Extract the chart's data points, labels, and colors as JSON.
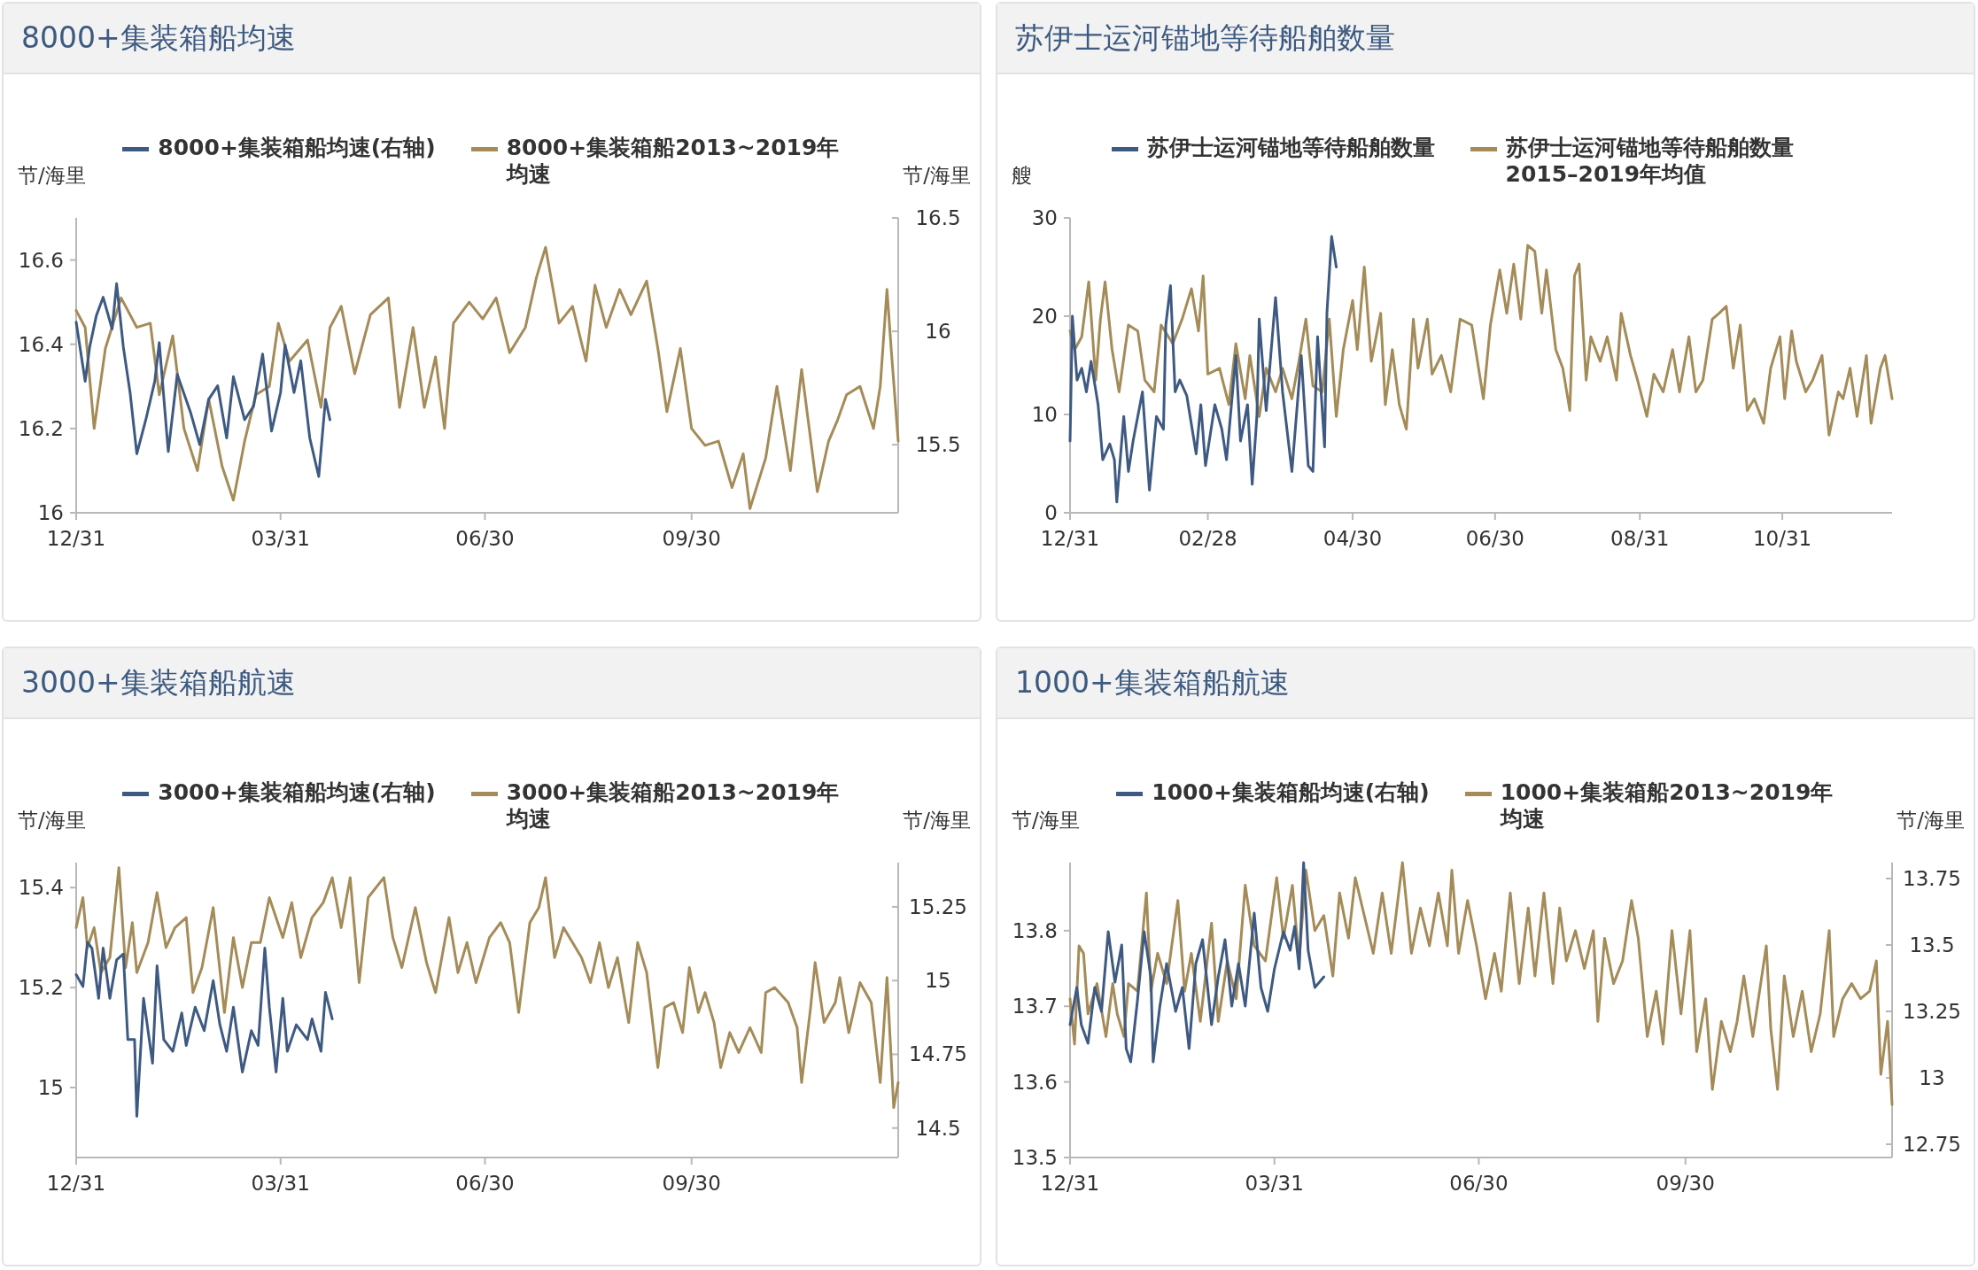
{
  "chart_data": [
    {
      "type": "line",
      "title": "8000+集装箱船均速",
      "ylabel": "节/海里",
      "y2label": "节/海里",
      "legend": "top",
      "xlim": [
        "2019-12-31",
        "2020-12-31"
      ],
      "xticks": [
        {
          "value": "2019-12-31",
          "label": "12/31"
        },
        {
          "value": "2020-03-31",
          "label": "03/31"
        },
        {
          "value": "2020-06-30",
          "label": "06/30"
        },
        {
          "value": "2020-09-30",
          "label": "09/30"
        }
      ],
      "ylim": [
        16,
        16.7
      ],
      "yticks": [
        16,
        16.2,
        16.4,
        16.6
      ],
      "y2lim": [
        15.2,
        16.5
      ],
      "y2ticks": [
        15.5,
        16,
        16.5
      ],
      "series": [
        {
          "name": "8000+集装箱船均速(右轴)",
          "color": "#3e5a82",
          "axis": "y2",
          "x": [
            "2019-12-31",
            "2020-01-04",
            "2020-01-06",
            "2020-01-09",
            "2020-01-12",
            "2020-01-16",
            "2020-01-18",
            "2020-01-21",
            "2020-01-24",
            "2020-01-27",
            "2020-01-31",
            "2020-02-04",
            "2020-02-06",
            "2020-02-10",
            "2020-02-14",
            "2020-02-20",
            "2020-02-24",
            "2020-02-28",
            "2020-03-03",
            "2020-03-07",
            "2020-03-10",
            "2020-03-15",
            "2020-03-19",
            "2020-03-23",
            "2020-03-27",
            "2020-03-31",
            "2020-04-02",
            "2020-04-06",
            "2020-04-09",
            "2020-04-13",
            "2020-04-17",
            "2020-04-20",
            "2020-04-22"
          ],
          "values": [
            16.04,
            15.78,
            15.93,
            16.07,
            16.15,
            16.01,
            16.21,
            15.93,
            15.73,
            15.46,
            15.61,
            15.78,
            15.95,
            15.47,
            15.81,
            15.64,
            15.5,
            15.7,
            15.76,
            15.53,
            15.8,
            15.61,
            15.67,
            15.9,
            15.56,
            15.73,
            15.94,
            15.73,
            15.87,
            15.53,
            15.36,
            15.7,
            15.61
          ]
        },
        {
          "name": "8000+集装箱船2013~2019年均速",
          "color": "#a48b58",
          "x": [
            "2019-12-31",
            "2020-01-04",
            "2020-01-08",
            "2020-01-13",
            "2020-01-20",
            "2020-01-27",
            "2020-02-02",
            "2020-02-06",
            "2020-02-12",
            "2020-02-17",
            "2020-02-23",
            "2020-02-28",
            "2020-03-05",
            "2020-03-10",
            "2020-03-15",
            "2020-03-20",
            "2020-03-26",
            "2020-03-30",
            "2020-04-04",
            "2020-04-12",
            "2020-04-18",
            "2020-04-22",
            "2020-04-27",
            "2020-05-03",
            "2020-05-10",
            "2020-05-18",
            "2020-05-23",
            "2020-05-29",
            "2020-06-03",
            "2020-06-08",
            "2020-06-12",
            "2020-06-16",
            "2020-06-23",
            "2020-06-29",
            "2020-07-05",
            "2020-07-11",
            "2020-07-18",
            "2020-07-23",
            "2020-07-27",
            "2020-08-02",
            "2020-08-08",
            "2020-08-14",
            "2020-08-18",
            "2020-08-23",
            "2020-08-29",
            "2020-09-03",
            "2020-09-10",
            "2020-09-15",
            "2020-09-19",
            "2020-09-25",
            "2020-09-30",
            "2020-10-06",
            "2020-10-12",
            "2020-10-18",
            "2020-10-23",
            "2020-10-26",
            "2020-11-02",
            "2020-11-07",
            "2020-11-13",
            "2020-11-18",
            "2020-11-25",
            "2020-11-30",
            "2020-12-04",
            "2020-12-08",
            "2020-12-14",
            "2020-12-20",
            "2020-12-23",
            "2020-12-26",
            "2020-12-28",
            "2020-12-31"
          ],
          "values": [
            16.48,
            16.44,
            16.2,
            16.39,
            16.51,
            16.44,
            16.45,
            16.28,
            16.42,
            16.2,
            16.1,
            16.27,
            16.11,
            16.03,
            16.17,
            16.28,
            16.3,
            16.45,
            16.36,
            16.41,
            16.25,
            16.44,
            16.49,
            16.33,
            16.47,
            16.51,
            16.25,
            16.44,
            16.25,
            16.37,
            16.2,
            16.45,
            16.5,
            16.46,
            16.51,
            16.38,
            16.44,
            16.56,
            16.63,
            16.45,
            16.49,
            16.36,
            16.54,
            16.44,
            16.53,
            16.47,
            16.55,
            16.39,
            16.24,
            16.39,
            16.2,
            16.16,
            16.17,
            16.06,
            16.14,
            16.01,
            16.13,
            16.3,
            16.1,
            16.34,
            16.05,
            16.17,
            16.22,
            16.28,
            16.3,
            16.2,
            16.3,
            16.53,
            16.38,
            16.17
          ]
        }
      ]
    },
    {
      "type": "line",
      "title": "苏伊士运河锚地等待船舶数量",
      "ylabel": "艘",
      "legend": "top",
      "xlim": [
        "2019-12-31",
        "2020-12-17"
      ],
      "xticks": [
        {
          "value": "2019-12-31",
          "label": "12/31"
        },
        {
          "value": "2020-02-28",
          "label": "02/28"
        },
        {
          "value": "2020-04-30",
          "label": "04/30"
        },
        {
          "value": "2020-06-30",
          "label": "06/30"
        },
        {
          "value": "2020-08-31",
          "label": "08/31"
        },
        {
          "value": "2020-10-31",
          "label": "10/31"
        }
      ],
      "ylim": [
        0,
        30
      ],
      "yticks": [
        0,
        10,
        20,
        30
      ],
      "series": [
        {
          "name": "苏伊士运河锚地等待船舶数量",
          "color": "#3e5a82",
          "x": [
            "2019-12-31",
            "2020-01-01",
            "2020-01-03",
            "2020-01-05",
            "2020-01-07",
            "2020-01-09",
            "2020-01-12",
            "2020-01-14",
            "2020-01-17",
            "2020-01-19",
            "2020-01-20",
            "2020-01-23",
            "2020-01-25",
            "2020-01-27",
            "2020-01-31",
            "2020-02-03",
            "2020-02-06",
            "2020-02-09",
            "2020-02-10",
            "2020-02-12",
            "2020-02-14",
            "2020-02-16",
            "2020-02-19",
            "2020-02-23",
            "2020-02-25",
            "2020-02-27",
            "2020-03-02",
            "2020-03-05",
            "2020-03-07",
            "2020-03-11",
            "2020-03-13",
            "2020-03-16",
            "2020-03-18",
            "2020-03-20",
            "2020-03-21",
            "2020-03-24",
            "2020-03-28",
            "2020-03-31",
            "2020-04-04",
            "2020-04-08",
            "2020-04-11",
            "2020-04-13",
            "2020-04-15",
            "2020-04-18",
            "2020-04-19",
            "2020-04-21",
            "2020-04-23"
          ],
          "values": [
            7.3,
            20,
            13.5,
            14.7,
            12.3,
            15.4,
            11,
            5.4,
            7,
            5.4,
            1.1,
            9.8,
            4.2,
            7.3,
            12.3,
            2.3,
            9.8,
            8.5,
            19.1,
            23.1,
            12.3,
            13.5,
            11.9,
            6,
            11,
            4.8,
            11,
            8.5,
            5.4,
            16,
            7.3,
            11,
            2.9,
            9.8,
            19.7,
            10.4,
            21.9,
            12.3,
            4.2,
            16,
            4.8,
            4.2,
            17.9,
            6.7,
            20.3,
            28.1,
            25
          ]
        },
        {
          "name": "苏伊士运河锚地等待船舶数量2015–2019年均值",
          "color": "#a48b58",
          "x": [
            "2019-12-31",
            "2020-01-02",
            "2020-01-05",
            "2020-01-08",
            "2020-01-11",
            "2020-01-13",
            "2020-01-15",
            "2020-01-18",
            "2020-01-21",
            "2020-01-25",
            "2020-01-29",
            "2020-02-01",
            "2020-02-05",
            "2020-02-08",
            "2020-02-13",
            "2020-02-17",
            "2020-02-21",
            "2020-02-24",
            "2020-02-26",
            "2020-02-28",
            "2020-03-04",
            "2020-03-08",
            "2020-03-11",
            "2020-03-15",
            "2020-03-17",
            "2020-03-21",
            "2020-03-24",
            "2020-03-28",
            "2020-03-31",
            "2020-04-04",
            "2020-04-07",
            "2020-04-10",
            "2020-04-13",
            "2020-04-17",
            "2020-04-20",
            "2020-04-23",
            "2020-04-26",
            "2020-04-30",
            "2020-05-02",
            "2020-05-05",
            "2020-05-08",
            "2020-05-12",
            "2020-05-14",
            "2020-05-17",
            "2020-05-20",
            "2020-05-23",
            "2020-05-26",
            "2020-05-28",
            "2020-06-01",
            "2020-06-03",
            "2020-06-07",
            "2020-06-11",
            "2020-06-15",
            "2020-06-20",
            "2020-06-25",
            "2020-06-28",
            "2020-07-02",
            "2020-07-05",
            "2020-07-08",
            "2020-07-11",
            "2020-07-14",
            "2020-07-17",
            "2020-07-20",
            "2020-07-22",
            "2020-07-26",
            "2020-07-29",
            "2020-08-01",
            "2020-08-03",
            "2020-08-05",
            "2020-08-08",
            "2020-08-10",
            "2020-08-14",
            "2020-08-17",
            "2020-08-21",
            "2020-08-23",
            "2020-08-27",
            "2020-08-30",
            "2020-09-03",
            "2020-09-06",
            "2020-09-10",
            "2020-09-14",
            "2020-09-17",
            "2020-09-21",
            "2020-09-24",
            "2020-09-27",
            "2020-10-01",
            "2020-10-04",
            "2020-10-07",
            "2020-10-10",
            "2020-10-13",
            "2020-10-16",
            "2020-10-19",
            "2020-10-23",
            "2020-10-26",
            "2020-10-30",
            "2020-11-01",
            "2020-11-04",
            "2020-11-06",
            "2020-11-10",
            "2020-11-13",
            "2020-11-17",
            "2020-11-20",
            "2020-11-24",
            "2020-11-26",
            "2020-11-29",
            "2020-12-02",
            "2020-12-06",
            "2020-12-08",
            "2020-12-12",
            "2020-12-14",
            "2020-12-17"
          ],
          "values": [
            18.5,
            16.6,
            17.9,
            23.5,
            13.5,
            19.7,
            23.5,
            16.6,
            12.3,
            19.1,
            18.5,
            13.5,
            12.3,
            19.1,
            17.2,
            19.7,
            22.8,
            18.5,
            24.1,
            14.1,
            14.7,
            11,
            17.2,
            11.6,
            16,
            9.8,
            14.7,
            12.3,
            14.7,
            11.6,
            15.4,
            19.7,
            12.9,
            12.3,
            19.7,
            9.8,
            16.6,
            21.6,
            16.6,
            25,
            15.4,
            20.3,
            11,
            16.6,
            11,
            8.5,
            19.7,
            14.7,
            19.7,
            14.1,
            16,
            12.3,
            19.7,
            19.1,
            11.6,
            19.1,
            24.7,
            20.3,
            25.3,
            19.7,
            27.2,
            26.6,
            20.3,
            24.7,
            16.6,
            14.7,
            10.4,
            24.1,
            25.3,
            13.5,
            17.9,
            15.4,
            17.9,
            13.5,
            20.3,
            16,
            13.5,
            9.8,
            14.1,
            12.3,
            16.6,
            12.3,
            17.9,
            12.3,
            13.5,
            19.7,
            20.3,
            21,
            14.7,
            19.1,
            10.4,
            11.6,
            9.1,
            14.7,
            17.9,
            11.6,
            18.5,
            15.4,
            12.3,
            13.5,
            16,
            7.9,
            12.3,
            11.6,
            14.7,
            9.8,
            16,
            9.1,
            14.7,
            16,
            11.6
          ]
        }
      ]
    },
    {
      "type": "line",
      "title": "3000+集装箱船航速",
      "ylabel": "节/海里",
      "y2label": "节/海里",
      "legend": "top",
      "xlim": [
        "2019-12-31",
        "2020-12-31"
      ],
      "xticks": [
        {
          "value": "2019-12-31",
          "label": "12/31"
        },
        {
          "value": "2020-03-31",
          "label": "03/31"
        },
        {
          "value": "2020-06-30",
          "label": "06/30"
        },
        {
          "value": "2020-09-30",
          "label": "09/30"
        }
      ],
      "ylim": [
        14.86,
        15.45
      ],
      "yticks": [
        15,
        15.2,
        15.4
      ],
      "y2lim": [
        14.4,
        15.4
      ],
      "y2ticks": [
        14.5,
        14.75,
        15,
        15.25
      ],
      "series": [
        {
          "name": "3000+集装箱船均速(右轴)",
          "color": "#3e5a82",
          "axis": "y2",
          "x": [
            "2019-12-31",
            "2020-01-03",
            "2020-01-05",
            "2020-01-07",
            "2020-01-10",
            "2020-01-12",
            "2020-01-15",
            "2020-01-18",
            "2020-01-21",
            "2020-01-23",
            "2020-01-26",
            "2020-01-27",
            "2020-01-30",
            "2020-02-03",
            "2020-02-05",
            "2020-02-08",
            "2020-02-12",
            "2020-02-16",
            "2020-02-18",
            "2020-02-22",
            "2020-02-26",
            "2020-03-01",
            "2020-03-04",
            "2020-03-07",
            "2020-03-10",
            "2020-03-14",
            "2020-03-18",
            "2020-03-21",
            "2020-03-24",
            "2020-03-26",
            "2020-03-29",
            "2020-04-01",
            "2020-04-03",
            "2020-04-07",
            "2020-04-12",
            "2020-04-14",
            "2020-04-18",
            "2020-04-20",
            "2020-04-23"
          ],
          "values": [
            15.02,
            14.98,
            15.13,
            15.11,
            14.94,
            15.11,
            14.94,
            15.07,
            15.09,
            14.8,
            14.8,
            14.54,
            14.94,
            14.72,
            15.05,
            14.8,
            14.76,
            14.89,
            14.78,
            14.91,
            14.83,
            15,
            14.85,
            14.76,
            14.91,
            14.69,
            14.83,
            14.78,
            15.11,
            14.91,
            14.69,
            14.94,
            14.76,
            14.85,
            14.8,
            14.87,
            14.76,
            14.96,
            14.87
          ]
        },
        {
          "name": "3000+集装箱船2013~2019年均速",
          "color": "#a48b58",
          "x": [
            "2019-12-31",
            "2020-01-03",
            "2020-01-05",
            "2020-01-08",
            "2020-01-11",
            "2020-01-15",
            "2020-01-19",
            "2020-01-22",
            "2020-01-25",
            "2020-01-27",
            "2020-02-01",
            "2020-02-05",
            "2020-02-09",
            "2020-02-13",
            "2020-02-18",
            "2020-02-21",
            "2020-02-25",
            "2020-03-01",
            "2020-03-06",
            "2020-03-10",
            "2020-03-14",
            "2020-03-18",
            "2020-03-22",
            "2020-03-26",
            "2020-04-01",
            "2020-04-05",
            "2020-04-09",
            "2020-04-14",
            "2020-04-19",
            "2020-04-23",
            "2020-04-27",
            "2020-05-01",
            "2020-05-05",
            "2020-05-09",
            "2020-05-16",
            "2020-05-20",
            "2020-05-24",
            "2020-05-30",
            "2020-06-04",
            "2020-06-08",
            "2020-06-14",
            "2020-06-18",
            "2020-06-22",
            "2020-06-26",
            "2020-07-02",
            "2020-07-07",
            "2020-07-11",
            "2020-07-15",
            "2020-07-20",
            "2020-07-24",
            "2020-07-27",
            "2020-07-31",
            "2020-08-04",
            "2020-08-08",
            "2020-08-12",
            "2020-08-16",
            "2020-08-20",
            "2020-08-24",
            "2020-08-28",
            "2020-09-02",
            "2020-09-06",
            "2020-09-10",
            "2020-09-15",
            "2020-09-18",
            "2020-09-22",
            "2020-09-26",
            "2020-09-29",
            "2020-10-03",
            "2020-10-06",
            "2020-10-10",
            "2020-10-13",
            "2020-10-17",
            "2020-10-21",
            "2020-10-26",
            "2020-10-31",
            "2020-11-02",
            "2020-11-06",
            "2020-11-12",
            "2020-11-16",
            "2020-11-18",
            "2020-11-22",
            "2020-11-24",
            "2020-11-28",
            "2020-12-03",
            "2020-12-05",
            "2020-12-09",
            "2020-12-14",
            "2020-12-19",
            "2020-12-23",
            "2020-12-26",
            "2020-12-29",
            "2020-12-31"
          ],
          "values": [
            15.32,
            15.38,
            15.28,
            15.32,
            15.23,
            15.26,
            15.44,
            15.24,
            15.33,
            15.23,
            15.29,
            15.39,
            15.28,
            15.32,
            15.34,
            15.19,
            15.24,
            15.36,
            15.15,
            15.3,
            15.2,
            15.29,
            15.29,
            15.38,
            15.3,
            15.37,
            15.26,
            15.34,
            15.37,
            15.42,
            15.32,
            15.42,
            15.21,
            15.38,
            15.42,
            15.3,
            15.24,
            15.36,
            15.25,
            15.19,
            15.34,
            15.23,
            15.29,
            15.21,
            15.3,
            15.33,
            15.29,
            15.15,
            15.33,
            15.36,
            15.42,
            15.26,
            15.32,
            15.29,
            15.26,
            15.21,
            15.29,
            15.2,
            15.26,
            15.13,
            15.29,
            15.23,
            15.04,
            15.16,
            15.17,
            15.11,
            15.24,
            15.15,
            15.19,
            15.13,
            15.04,
            15.11,
            15.07,
            15.12,
            15.07,
            15.19,
            15.2,
            15.17,
            15.12,
            15.01,
            15.16,
            15.25,
            15.13,
            15.17,
            15.22,
            15.11,
            15.21,
            15.17,
            15.01,
            15.22,
            14.96,
            15.01
          ]
        }
      ]
    },
    {
      "type": "line",
      "title": "1000+集装箱船航速",
      "ylabel": "节/海里",
      "y2label": "节/海里",
      "legend": "top",
      "xlim": [
        "2019-12-31",
        "2020-12-31"
      ],
      "xticks": [
        {
          "value": "2019-12-31",
          "label": "12/31"
        },
        {
          "value": "2020-03-31",
          "label": "03/31"
        },
        {
          "value": "2020-06-30",
          "label": "06/30"
        },
        {
          "value": "2020-09-30",
          "label": "09/30"
        }
      ],
      "ylim": [
        13.5,
        13.89
      ],
      "yticks": [
        13.5,
        13.6,
        13.7,
        13.8
      ],
      "y2lim": [
        12.7,
        13.81
      ],
      "y2ticks": [
        12.75,
        13,
        13.25,
        13.5,
        13.75
      ],
      "series": [
        {
          "name": "1000+集装箱船均速(右轴)",
          "color": "#3e5a82",
          "axis": "y2",
          "x": [
            "2019-12-31",
            "2020-01-03",
            "2020-01-05",
            "2020-01-08",
            "2020-01-11",
            "2020-01-14",
            "2020-01-17",
            "2020-01-20",
            "2020-01-23",
            "2020-01-25",
            "2020-01-27",
            "2020-01-30",
            "2020-02-02",
            "2020-02-05",
            "2020-02-06",
            "2020-02-09",
            "2020-02-12",
            "2020-02-16",
            "2020-02-19",
            "2020-02-22",
            "2020-02-25",
            "2020-02-28",
            "2020-03-03",
            "2020-03-06",
            "2020-03-09",
            "2020-03-12",
            "2020-03-15",
            "2020-03-18",
            "2020-03-22",
            "2020-03-25",
            "2020-03-28",
            "2020-03-31",
            "2020-04-04",
            "2020-04-07",
            "2020-04-09",
            "2020-04-11",
            "2020-04-13",
            "2020-04-15",
            "2020-04-18",
            "2020-04-22"
          ],
          "values": [
            13.2,
            13.34,
            13.2,
            13.13,
            13.34,
            13.25,
            13.55,
            13.36,
            13.5,
            13.11,
            13.06,
            13.29,
            13.55,
            13.38,
            13.06,
            13.27,
            13.43,
            13.25,
            13.34,
            13.11,
            13.43,
            13.52,
            13.2,
            13.38,
            13.52,
            13.27,
            13.43,
            13.27,
            13.62,
            13.34,
            13.25,
            13.41,
            13.55,
            13.48,
            13.57,
            13.41,
            13.81,
            13.48,
            13.34,
            13.38
          ]
        },
        {
          "name": "1000+集装箱船2013~2019年均速",
          "color": "#a48b58",
          "x": [
            "2019-12-31",
            "2020-01-02",
            "2020-01-04",
            "2020-01-06",
            "2020-01-08",
            "2020-01-12",
            "2020-01-16",
            "2020-01-19",
            "2020-01-21",
            "2020-01-24",
            "2020-01-26",
            "2020-01-30",
            "2020-02-03",
            "2020-02-05",
            "2020-02-08",
            "2020-02-12",
            "2020-02-17",
            "2020-02-20",
            "2020-02-23",
            "2020-02-27",
            "2020-03-03",
            "2020-03-06",
            "2020-03-10",
            "2020-03-14",
            "2020-03-18",
            "2020-03-22",
            "2020-03-27",
            "2020-04-01",
            "2020-04-04",
            "2020-04-08",
            "2020-04-11",
            "2020-04-14",
            "2020-04-18",
            "2020-04-22",
            "2020-04-26",
            "2020-04-29",
            "2020-05-03",
            "2020-05-06",
            "2020-05-10",
            "2020-05-14",
            "2020-05-18",
            "2020-05-22",
            "2020-05-27",
            "2020-05-31",
            "2020-06-04",
            "2020-06-08",
            "2020-06-12",
            "2020-06-16",
            "2020-06-18",
            "2020-06-21",
            "2020-06-25",
            "2020-06-29",
            "2020-07-03",
            "2020-07-07",
            "2020-07-10",
            "2020-07-14",
            "2020-07-18",
            "2020-07-22",
            "2020-07-25",
            "2020-07-29",
            "2020-08-02",
            "2020-08-05",
            "2020-08-08",
            "2020-08-12",
            "2020-08-16",
            "2020-08-20",
            "2020-08-22",
            "2020-08-25",
            "2020-08-29",
            "2020-09-02",
            "2020-09-06",
            "2020-09-09",
            "2020-09-13",
            "2020-09-17",
            "2020-09-20",
            "2020-09-24",
            "2020-09-28",
            "2020-10-02",
            "2020-10-05",
            "2020-10-09",
            "2020-10-12",
            "2020-10-16",
            "2020-10-20",
            "2020-10-23",
            "2020-10-26",
            "2020-10-30",
            "2020-11-02",
            "2020-11-05",
            "2020-11-07",
            "2020-11-10",
            "2020-11-13",
            "2020-11-17",
            "2020-11-21",
            "2020-11-25",
            "2020-11-29",
            "2020-12-03",
            "2020-12-05",
            "2020-12-09",
            "2020-12-13",
            "2020-12-17",
            "2020-12-21",
            "2020-12-24",
            "2020-12-26",
            "2020-12-29",
            "2020-12-31"
          ],
          "values": [
            13.71,
            13.65,
            13.78,
            13.77,
            13.69,
            13.73,
            13.66,
            13.73,
            13.69,
            13.66,
            13.73,
            13.72,
            13.85,
            13.72,
            13.77,
            13.73,
            13.84,
            13.72,
            13.77,
            13.68,
            13.81,
            13.68,
            13.76,
            13.71,
            13.86,
            13.78,
            13.76,
            13.87,
            13.79,
            13.86,
            13.76,
            13.88,
            13.8,
            13.82,
            13.74,
            13.85,
            13.79,
            13.87,
            13.82,
            13.77,
            13.85,
            13.77,
            13.89,
            13.77,
            13.83,
            13.78,
            13.85,
            13.78,
            13.88,
            13.77,
            13.84,
            13.78,
            13.71,
            13.77,
            13.72,
            13.85,
            13.73,
            13.83,
            13.74,
            13.85,
            13.73,
            13.83,
            13.76,
            13.8,
            13.75,
            13.8,
            13.68,
            13.79,
            13.73,
            13.76,
            13.84,
            13.79,
            13.66,
            13.72,
            13.65,
            13.8,
            13.69,
            13.8,
            13.64,
            13.71,
            13.59,
            13.68,
            13.64,
            13.68,
            13.74,
            13.66,
            13.72,
            13.78,
            13.67,
            13.59,
            13.74,
            13.66,
            13.72,
            13.64,
            13.69,
            13.8,
            13.66,
            13.71,
            13.73,
            13.71,
            13.72,
            13.76,
            13.61,
            13.68,
            13.57
          ]
        }
      ]
    }
  ]
}
